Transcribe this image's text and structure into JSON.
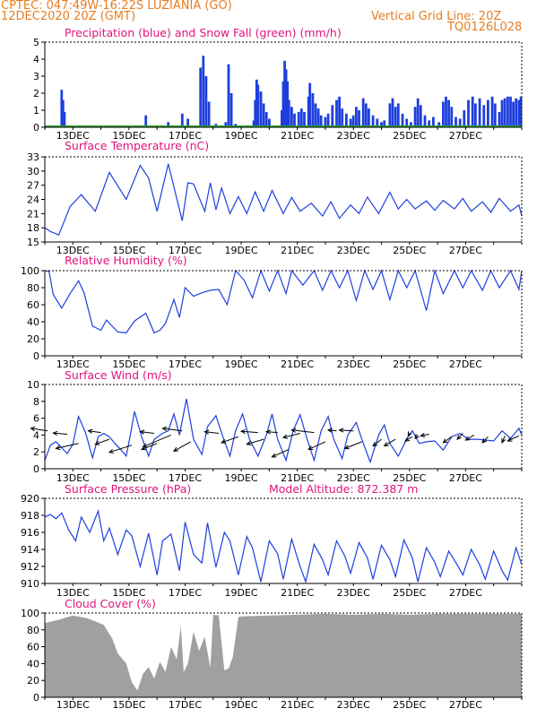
{
  "header": {
    "line1": "CPTEC:   047:49W-16:22S   LUZIANIA (GO)",
    "line2": "12DEC2020 20Z (GMT)",
    "grid_note": "Vertical Grid Line: 20Z",
    "code": "TQ0126L028"
  },
  "colors": {
    "header": "#e67e22",
    "title": "#e0147c",
    "line": "#1f3fdd",
    "snow": "#2ca02c",
    "cloud": "#a0a0a0"
  },
  "x_ticks": [
    "13DEC",
    "15DEC",
    "17DEC",
    "19DEC",
    "21DEC",
    "23DEC",
    "25DEC",
    "27DEC"
  ],
  "chart_data": [
    {
      "type": "bar",
      "title": "Precipitation (blue) and Snow Fall (green) (mm/h)",
      "ylim": [
        0,
        5
      ],
      "yticks": [
        "0",
        "1",
        "2",
        "3",
        "4",
        "5"
      ],
      "series": [
        {
          "name": "Precipitation",
          "points": [
            [
              0.6,
              2.2
            ],
            [
              0.65,
              1.6
            ],
            [
              0.7,
              0.9
            ],
            [
              1.3,
              0.1
            ],
            [
              2.9,
              0.1
            ],
            [
              3.6,
              0.7
            ],
            [
              4.4,
              0.3
            ],
            [
              4.9,
              0.8
            ],
            [
              5.1,
              0.5
            ],
            [
              5.55,
              3.5
            ],
            [
              5.65,
              4.2
            ],
            [
              5.75,
              3.0
            ],
            [
              5.85,
              1.5
            ],
            [
              6.1,
              0.2
            ],
            [
              6.35,
              0.1
            ],
            [
              6.45,
              0.3
            ],
            [
              6.55,
              3.7
            ],
            [
              6.65,
              2.0
            ],
            [
              6.8,
              0.2
            ],
            [
              7.45,
              0.4
            ],
            [
              7.5,
              1.6
            ],
            [
              7.55,
              2.8
            ],
            [
              7.6,
              2.5
            ],
            [
              7.7,
              2.1
            ],
            [
              7.8,
              1.4
            ],
            [
              7.9,
              0.9
            ],
            [
              8.0,
              0.5
            ],
            [
              8.45,
              1.0
            ],
            [
              8.5,
              2.7
            ],
            [
              8.55,
              3.9
            ],
            [
              8.6,
              3.4
            ],
            [
              8.65,
              2.7
            ],
            [
              8.7,
              1.6
            ],
            [
              8.8,
              1.2
            ],
            [
              8.9,
              0.8
            ],
            [
              9.05,
              0.9
            ],
            [
              9.15,
              1.1
            ],
            [
              9.25,
              0.9
            ],
            [
              9.4,
              1.8
            ],
            [
              9.45,
              2.6
            ],
            [
              9.55,
              2.0
            ],
            [
              9.65,
              1.4
            ],
            [
              9.75,
              1.1
            ],
            [
              9.85,
              0.7
            ],
            [
              10.0,
              0.6
            ],
            [
              10.1,
              0.8
            ],
            [
              10.25,
              1.3
            ],
            [
              10.4,
              1.6
            ],
            [
              10.5,
              1.8
            ],
            [
              10.6,
              1.1
            ],
            [
              10.75,
              0.8
            ],
            [
              10.9,
              0.5
            ],
            [
              11.0,
              0.7
            ],
            [
              11.1,
              1.2
            ],
            [
              11.2,
              1.0
            ],
            [
              11.35,
              1.7
            ],
            [
              11.45,
              1.4
            ],
            [
              11.55,
              1.1
            ],
            [
              11.7,
              0.7
            ],
            [
              11.85,
              0.5
            ],
            [
              12.0,
              0.3
            ],
            [
              12.1,
              0.4
            ],
            [
              12.3,
              1.4
            ],
            [
              12.4,
              1.7
            ],
            [
              12.5,
              1.2
            ],
            [
              12.6,
              1.4
            ],
            [
              12.75,
              0.8
            ],
            [
              12.9,
              0.5
            ],
            [
              13.05,
              0.3
            ],
            [
              13.2,
              1.2
            ],
            [
              13.3,
              1.7
            ],
            [
              13.4,
              1.3
            ],
            [
              13.55,
              0.7
            ],
            [
              13.7,
              0.4
            ],
            [
              13.85,
              0.6
            ],
            [
              14.05,
              0.3
            ],
            [
              14.2,
              1.5
            ],
            [
              14.3,
              1.8
            ],
            [
              14.4,
              1.6
            ],
            [
              14.5,
              1.2
            ],
            [
              14.65,
              0.6
            ],
            [
              14.8,
              0.5
            ],
            [
              14.95,
              1.0
            ],
            [
              15.1,
              1.6
            ],
            [
              15.25,
              1.8
            ],
            [
              15.35,
              1.4
            ],
            [
              15.5,
              1.7
            ],
            [
              15.65,
              1.3
            ],
            [
              15.8,
              1.6
            ],
            [
              15.95,
              1.8
            ],
            [
              16.05,
              1.4
            ],
            [
              16.2,
              0.9
            ],
            [
              16.3,
              1.6
            ],
            [
              16.4,
              1.7
            ],
            [
              16.5,
              1.8
            ],
            [
              16.6,
              1.8
            ],
            [
              16.7,
              1.5
            ],
            [
              16.8,
              1.7
            ],
            [
              16.9,
              1.6
            ],
            [
              16.97,
              1.8
            ]
          ]
        },
        {
          "name": "Snow Fall",
          "points": [
            [
              0.5,
              0.1
            ],
            [
              2.2,
              0.1
            ],
            [
              14.8,
              0.1
            ],
            [
              15.0,
              0.1
            ]
          ]
        }
      ]
    },
    {
      "type": "line",
      "title": "Surface Temperature (nC)",
      "ylim": [
        15,
        33
      ],
      "yticks": [
        "15",
        "18",
        "21",
        "24",
        "27",
        "30",
        "33"
      ],
      "x": [
        0,
        0.2,
        0.5,
        0.9,
        1.3,
        1.8,
        2.3,
        2.9,
        3.4,
        3.7,
        4.0,
        4.4,
        4.9,
        5.1,
        5.3,
        5.7,
        5.9,
        6.1,
        6.3,
        6.6,
        6.9,
        7.2,
        7.5,
        7.8,
        8.1,
        8.5,
        8.8,
        9.1,
        9.5,
        9.9,
        10.2,
        10.5,
        10.9,
        11.2,
        11.5,
        11.9,
        12.3,
        12.6,
        12.9,
        13.2,
        13.6,
        13.9,
        14.2,
        14.6,
        14.9,
        15.2,
        15.6,
        15.9,
        16.2,
        16.6,
        16.9,
        17.0
      ],
      "y": [
        18.0,
        17.2,
        16.5,
        22.5,
        25.0,
        21.5,
        29.7,
        24.0,
        31.2,
        28.5,
        21.5,
        31.5,
        19.5,
        27.5,
        27.3,
        21.5,
        27.5,
        21.8,
        26.4,
        21.0,
        24.6,
        21.0,
        25.6,
        21.5,
        25.9,
        21.0,
        24.4,
        21.5,
        23.2,
        20.5,
        23.5,
        20.0,
        22.8,
        21.0,
        24.5,
        21.0,
        25.5,
        22.0,
        24.0,
        22.0,
        23.7,
        21.7,
        23.8,
        22.0,
        24.2,
        21.5,
        23.5,
        21.3,
        24.2,
        21.5,
        22.8,
        20.5
      ]
    },
    {
      "type": "line",
      "title": "Relative Humidity (%)",
      "ylim": [
        0,
        100
      ],
      "yticks": [
        "0",
        "20",
        "40",
        "60",
        "80",
        "100"
      ],
      "x": [
        0,
        0.15,
        0.3,
        0.6,
        0.9,
        1.2,
        1.4,
        1.7,
        2.0,
        2.2,
        2.6,
        2.9,
        3.2,
        3.6,
        3.9,
        4.1,
        4.3,
        4.6,
        4.8,
        5.0,
        5.3,
        5.6,
        5.9,
        6.2,
        6.5,
        6.8,
        7.1,
        7.4,
        7.7,
        8.0,
        8.3,
        8.6,
        8.8,
        9.2,
        9.6,
        9.9,
        10.2,
        10.5,
        10.8,
        11.1,
        11.4,
        11.7,
        12.0,
        12.3,
        12.6,
        12.9,
        13.2,
        13.6,
        13.9,
        14.2,
        14.6,
        14.9,
        15.2,
        15.6,
        15.9,
        16.2,
        16.6,
        16.9,
        17.0
      ],
      "y": [
        100,
        99,
        72,
        56,
        73,
        88,
        74,
        35,
        30,
        42,
        28,
        27,
        41,
        50,
        27,
        30,
        38,
        66,
        45,
        80,
        70,
        74,
        77,
        78,
        60,
        100,
        89,
        68,
        100,
        76,
        100,
        73,
        100,
        83,
        100,
        77,
        100,
        80,
        100,
        65,
        100,
        78,
        100,
        66,
        100,
        80,
        100,
        53,
        100,
        73,
        100,
        80,
        100,
        77,
        100,
        80,
        100,
        78,
        100
      ]
    },
    {
      "type": "line",
      "title": "Surface Wind (m/s)",
      "ylim": [
        0,
        10
      ],
      "yticks": [
        "0",
        "2",
        "4",
        "6",
        "8",
        "10"
      ],
      "x": [
        0,
        0.2,
        0.4,
        0.6,
        0.8,
        1.0,
        1.2,
        1.45,
        1.7,
        1.9,
        2.1,
        2.3,
        2.5,
        2.7,
        2.9,
        3.05,
        3.2,
        3.45,
        3.7,
        3.9,
        4.2,
        4.4,
        4.6,
        4.8,
        5.05,
        5.3,
        5.6,
        5.8,
        6.1,
        6.35,
        6.6,
        6.8,
        7.05,
        7.3,
        7.6,
        7.9,
        8.1,
        8.3,
        8.6,
        8.85,
        9.1,
        9.35,
        9.6,
        9.85,
        10.1,
        10.3,
        10.6,
        10.8,
        11.1,
        11.3,
        11.6,
        11.9,
        12.1,
        12.3,
        12.6,
        12.9,
        13.1,
        13.35,
        13.6,
        13.9,
        14.2,
        14.5,
        14.8,
        15.1,
        15.4,
        15.7,
        16.0,
        16.3,
        16.6,
        16.9,
        17.0
      ],
      "y": [
        1.0,
        2.8,
        3.2,
        2.5,
        1.8,
        2.9,
        6.2,
        4.3,
        1.3,
        3.8,
        4.2,
        3.8,
        3.0,
        2.3,
        1.5,
        4.0,
        6.8,
        3.8,
        1.5,
        3.5,
        4.2,
        4.5,
        6.5,
        4.0,
        8.3,
        3.5,
        1.7,
        5.0,
        6.3,
        3.8,
        1.5,
        4.5,
        6.5,
        3.5,
        1.5,
        4.0,
        6.5,
        3.5,
        1.0,
        4.5,
        6.4,
        3.5,
        1.0,
        4.5,
        6.2,
        3.5,
        1.2,
        4.0,
        5.5,
        3.5,
        0.8,
        4.0,
        5.2,
        3.0,
        1.5,
        3.5,
        4.5,
        3.0,
        3.2,
        3.3,
        2.2,
        3.8,
        4.2,
        3.5,
        3.5,
        3.4,
        3.3,
        4.5,
        3.6,
        4.8,
        4.0
      ],
      "vectors": [
        [
          0.1,
          4.5,
          -0.6,
          0.3
        ],
        [
          0.8,
          4.1,
          -0.5,
          0.15
        ],
        [
          1.2,
          3.0,
          -0.8,
          -0.6
        ],
        [
          2.0,
          4.3,
          -0.45,
          0.2
        ],
        [
          2.3,
          3.5,
          -0.5,
          -0.6
        ],
        [
          3.1,
          2.8,
          -0.8,
          -0.85
        ],
        [
          3.9,
          4.2,
          -0.5,
          0.2
        ],
        [
          4.0,
          3.0,
          -0.55,
          -0.7
        ],
        [
          4.5,
          4.0,
          -1.0,
          -1.4
        ],
        [
          4.9,
          4.5,
          -0.7,
          0.3
        ],
        [
          5.2,
          3.2,
          -0.6,
          -1.1
        ],
        [
          6.2,
          4.2,
          -0.5,
          0.2
        ],
        [
          6.9,
          3.8,
          -0.6,
          -0.7
        ],
        [
          7.6,
          4.3,
          -0.6,
          0.15
        ],
        [
          7.8,
          3.5,
          -0.6,
          -0.6
        ],
        [
          8.3,
          4.3,
          -0.4,
          0.1
        ],
        [
          8.7,
          2.3,
          -0.6,
          -0.9
        ],
        [
          9.1,
          4.2,
          -0.6,
          -0.5
        ],
        [
          9.6,
          4.3,
          -0.8,
          0.3
        ],
        [
          10.0,
          3.2,
          -0.6,
          -0.9
        ],
        [
          10.4,
          4.5,
          -0.3,
          0.1
        ],
        [
          11.0,
          4.5,
          -0.5,
          0.1
        ],
        [
          11.3,
          3.2,
          -0.6,
          -0.8
        ],
        [
          12.0,
          3.5,
          -0.3,
          -0.8
        ],
        [
          12.5,
          3.5,
          -0.4,
          -0.8
        ],
        [
          13.0,
          4.2,
          -0.05,
          -0.3
        ],
        [
          13.1,
          3.8,
          -0.25,
          -0.5
        ],
        [
          13.3,
          4.0,
          -0.1,
          -0.4
        ],
        [
          13.7,
          4.1,
          -0.3,
          -0.2
        ],
        [
          14.5,
          3.8,
          -0.3,
          -0.7
        ],
        [
          14.9,
          4.2,
          -0.2,
          -0.7
        ],
        [
          15.3,
          4.0,
          -0.3,
          -0.6
        ],
        [
          15.8,
          3.8,
          -0.2,
          -0.7
        ],
        [
          16.4,
          3.9,
          -0.1,
          -0.8
        ],
        [
          16.9,
          3.9,
          -0.4,
          -0.6
        ]
      ]
    },
    {
      "type": "line",
      "title": "Surface Pressure (hPa)",
      "subtitle": "Model Altitude: 872.387 m",
      "ylim": [
        910,
        920
      ],
      "yticks": [
        "910",
        "912",
        "914",
        "916",
        "918",
        "920"
      ],
      "x": [
        0,
        0.2,
        0.4,
        0.6,
        0.85,
        1.1,
        1.3,
        1.6,
        1.9,
        2.1,
        2.3,
        2.6,
        2.9,
        3.1,
        3.4,
        3.7,
        4.0,
        4.2,
        4.5,
        4.8,
        5.0,
        5.3,
        5.6,
        5.8,
        6.1,
        6.4,
        6.6,
        6.9,
        7.2,
        7.4,
        7.7,
        8.0,
        8.3,
        8.5,
        8.8,
        9.1,
        9.3,
        9.6,
        9.9,
        10.1,
        10.4,
        10.7,
        10.9,
        11.2,
        11.5,
        11.7,
        12.0,
        12.3,
        12.5,
        12.8,
        13.1,
        13.3,
        13.6,
        13.9,
        14.1,
        14.4,
        14.7,
        14.9,
        15.2,
        15.5,
        15.7,
        16.0,
        16.3,
        16.5,
        16.8,
        17.0
      ],
      "y": [
        917.8,
        918.1,
        917.6,
        918.3,
        916.3,
        915.0,
        917.8,
        916.0,
        918.5,
        915.0,
        916.5,
        913.4,
        916.3,
        915.6,
        912.0,
        915.9,
        911.0,
        915.0,
        915.8,
        911.5,
        917.2,
        913.4,
        912.4,
        917.1,
        911.9,
        916.0,
        915.0,
        911.0,
        915.5,
        914.2,
        910.2,
        915.0,
        913.5,
        910.5,
        915.2,
        912.0,
        910.2,
        914.6,
        912.8,
        911.0,
        915.0,
        913.2,
        911.2,
        914.8,
        913.0,
        910.5,
        914.5,
        912.8,
        910.8,
        915.1,
        913.0,
        910.2,
        914.2,
        912.5,
        910.8,
        913.8,
        912.2,
        911.0,
        914.0,
        912.2,
        910.5,
        913.8,
        911.5,
        910.4,
        914.2,
        912.2
      ]
    },
    {
      "type": "area",
      "title": "Cloud Cover (%)",
      "ylim": [
        0,
        100
      ],
      "yticks": [
        "0",
        "20",
        "40",
        "60",
        "80",
        "100"
      ],
      "x": [
        0,
        0.5,
        1.0,
        1.5,
        1.8,
        2.1,
        2.4,
        2.6,
        2.9,
        3.1,
        3.3,
        3.5,
        3.7,
        3.9,
        4.1,
        4.3,
        4.5,
        4.7,
        4.85,
        4.95,
        5.1,
        5.3,
        5.5,
        5.7,
        5.9,
        6.0,
        6.2,
        6.4,
        6.55,
        6.7,
        6.9,
        7.0,
        8.0,
        9.0,
        10.0,
        11.0,
        12.0,
        13.0,
        14.0,
        15.0,
        16.0,
        17.0
      ],
      "y": [
        88,
        92,
        97,
        94,
        90,
        86,
        70,
        52,
        40,
        18,
        8,
        28,
        36,
        22,
        42,
        30,
        60,
        45,
        85,
        30,
        40,
        78,
        55,
        72,
        35,
        98,
        97,
        32,
        34,
        48,
        95,
        96,
        97,
        98,
        99,
        98,
        99,
        98,
        99,
        99,
        99,
        99
      ]
    }
  ]
}
